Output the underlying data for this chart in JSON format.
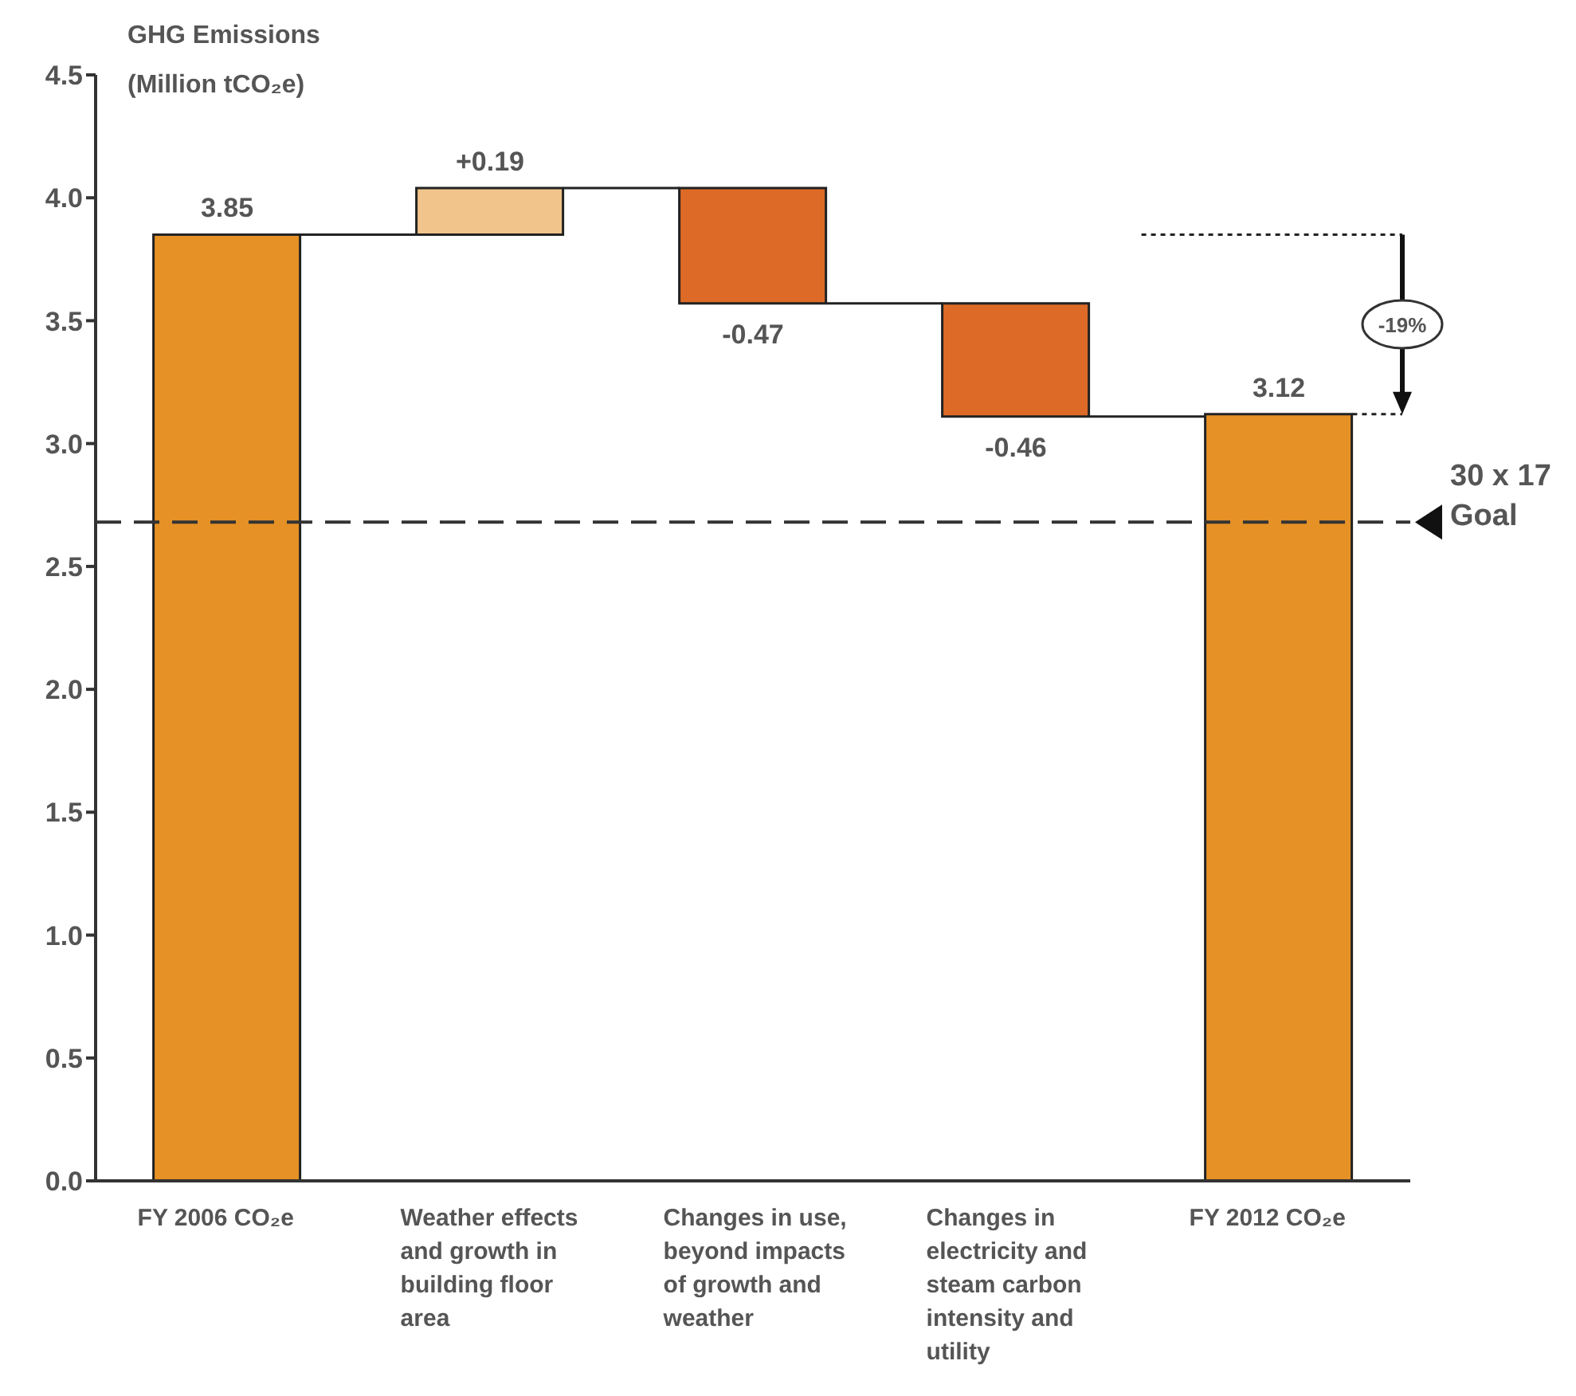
{
  "chart_data": {
    "type": "bar",
    "ylabel": "GHG Emissions (Million tCO₂e)",
    "categories": [
      "FY 2006 CO₂e",
      "Weather effects and growth in building floor area",
      "Changes in use, beyond impacts of growth and weather",
      "Changes in electricity and steam carbon intensity and utility",
      "FY 2012 CO₂e"
    ],
    "values": [
      3.85,
      0.19,
      -0.47,
      -0.46,
      3.12
    ],
    "base": [
      0,
      3.85,
      4.04,
      3.57,
      0
    ],
    "colors": [
      "#e59125",
      "#f0c48a",
      "#dd6b27",
      "#dd6b27",
      "#e59125"
    ],
    "value_labels": [
      "3.85",
      "+0.19",
      "-0.47",
      "-0.46",
      "3.12"
    ],
    "ylim": [
      0,
      4.5
    ],
    "yticks": [
      {
        "value": 0,
        "label": "0.0"
      },
      0.5,
      {
        "value": 1,
        "label": "1.0"
      },
      1.5,
      {
        "value": 2,
        "label": "2.0"
      },
      2.5,
      {
        "value": 3,
        "label": "3.0"
      },
      3.5,
      {
        "value": 4,
        "label": "4.0"
      },
      4.5
    ],
    "ref_lines": [
      {
        "axis": "y",
        "value": 2.68,
        "label": "30 x 17 Goal",
        "color": "#333333",
        "line_style": "dashed"
      }
    ],
    "annotations": [
      "-19%"
    ]
  }
}
